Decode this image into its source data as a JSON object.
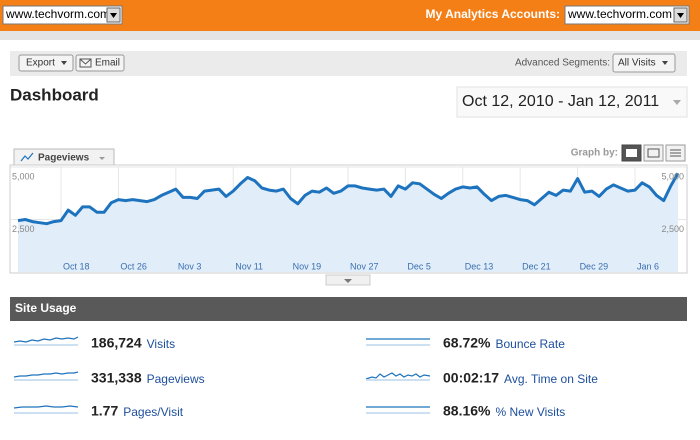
{
  "header": {
    "profile_select": "www.techvorm.com",
    "accounts_label": "My Analytics Accounts:",
    "accounts_select": "www.techvorm.com"
  },
  "toolbar": {
    "export": "Export",
    "email": "Email",
    "segments_label": "Advanced Segments:",
    "segments_select": "All Visits"
  },
  "title": "Dashboard",
  "date_range": "Oct 12, 2010 - Jan 12, 2011",
  "graph_by": "Graph by:",
  "chart_data": {
    "type": "area",
    "categories": [
      null,
      null,
      null,
      null,
      null,
      null,
      "Oct 18",
      null,
      null,
      null,
      null,
      null,
      null,
      null,
      "Oct 26",
      null,
      null,
      null,
      null,
      null,
      null,
      null,
      "Nov 3",
      null,
      null,
      null,
      null,
      null,
      null,
      null,
      "Nov 11",
      null,
      null,
      null,
      null,
      null,
      null,
      null,
      "Nov 19",
      null,
      null,
      null,
      null,
      null,
      null,
      null,
      "Nov 27",
      null,
      null,
      null,
      null,
      null,
      null,
      null,
      "Dec 5",
      null,
      null,
      null,
      null,
      null,
      null,
      null,
      "Dec 13",
      null,
      null,
      null,
      null,
      null,
      null,
      null,
      "Dec 21",
      null,
      null,
      null,
      null,
      null,
      null,
      null,
      "Dec 29",
      null,
      null,
      null,
      null,
      null,
      null,
      null,
      "Jan 6",
      null,
      null,
      null,
      null,
      null,
      null
    ],
    "series": [
      {
        "name": "Pageviews",
        "color": "#1e73be",
        "values": [
          2450,
          2500,
          2400,
          2350,
          2300,
          2400,
          2450,
          2950,
          2700,
          3100,
          3100,
          2850,
          2850,
          3300,
          3450,
          3400,
          3450,
          3400,
          3350,
          3450,
          3650,
          3800,
          3950,
          3550,
          3550,
          3500,
          3850,
          3900,
          3950,
          3600,
          3850,
          4200,
          4500,
          4350,
          4000,
          3900,
          3850,
          3950,
          3500,
          3250,
          3650,
          3850,
          3800,
          4000,
          3750,
          3850,
          4100,
          4100,
          4000,
          3950,
          3900,
          3950,
          3600,
          4100,
          3950,
          4250,
          4200,
          3950,
          3700,
          3500,
          3750,
          3950,
          4050,
          4000,
          4050,
          3700,
          3400,
          3600,
          3650,
          3550,
          3450,
          3400,
          3200,
          3500,
          3800,
          3650,
          3900,
          3850,
          4450,
          3800,
          3850,
          3600,
          3950,
          4150,
          4000,
          3850,
          3900,
          4250,
          4050,
          3650,
          3400,
          4100,
          4700
        ]
      }
    ],
    "ylim": [
      0,
      5000
    ],
    "yticks": [
      {
        "value": 2500,
        "label": "2,500"
      },
      {
        "value": 5000,
        "label": "5,000"
      }
    ],
    "grid": true
  },
  "site_usage": {
    "title": "Site Usage",
    "metrics": [
      {
        "value": "186,724",
        "label": "Visits"
      },
      {
        "value": "331,338",
        "label": "Pageviews"
      },
      {
        "value": "1.77",
        "label": "Pages/Visit"
      },
      {
        "value": "68.72%",
        "label": "Bounce Rate"
      },
      {
        "value": "00:02:17",
        "label": "Avg. Time on Site"
      },
      {
        "value": "88.16%",
        "label": "% New Visits"
      }
    ]
  }
}
